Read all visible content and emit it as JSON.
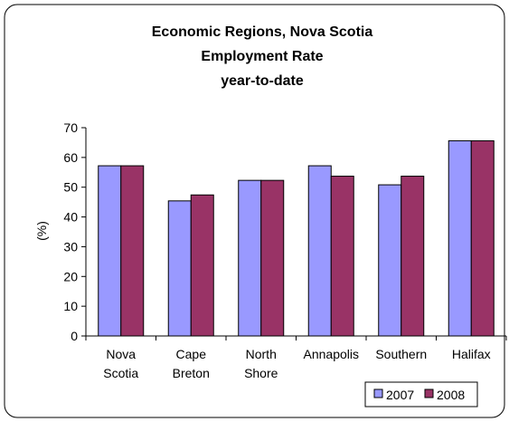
{
  "chart_data": {
    "type": "bar",
    "title_lines": [
      "Economic Regions, Nova Scotia",
      "Employment Rate",
      "year-to-date"
    ],
    "xlabel": "",
    "ylabel": "(%)",
    "ylim": [
      0,
      70
    ],
    "yticks": [
      0,
      10,
      20,
      30,
      40,
      50,
      60,
      70
    ],
    "grid": false,
    "legend_position": "bottom-right",
    "categories": [
      [
        "Nova",
        "Scotia"
      ],
      [
        "Cape",
        "Breton"
      ],
      [
        "North",
        "Shore"
      ],
      [
        "Annapolis"
      ],
      [
        "Southern"
      ],
      [
        "Halifax"
      ]
    ],
    "series": [
      {
        "name": "2007",
        "color": "#9999ff",
        "values": [
          57.2,
          45.4,
          52.3,
          57.2,
          50.8,
          65.6
        ]
      },
      {
        "name": "2008",
        "color": "#993366",
        "values": [
          57.2,
          47.4,
          52.3,
          53.7,
          53.7,
          65.6
        ]
      }
    ]
  }
}
